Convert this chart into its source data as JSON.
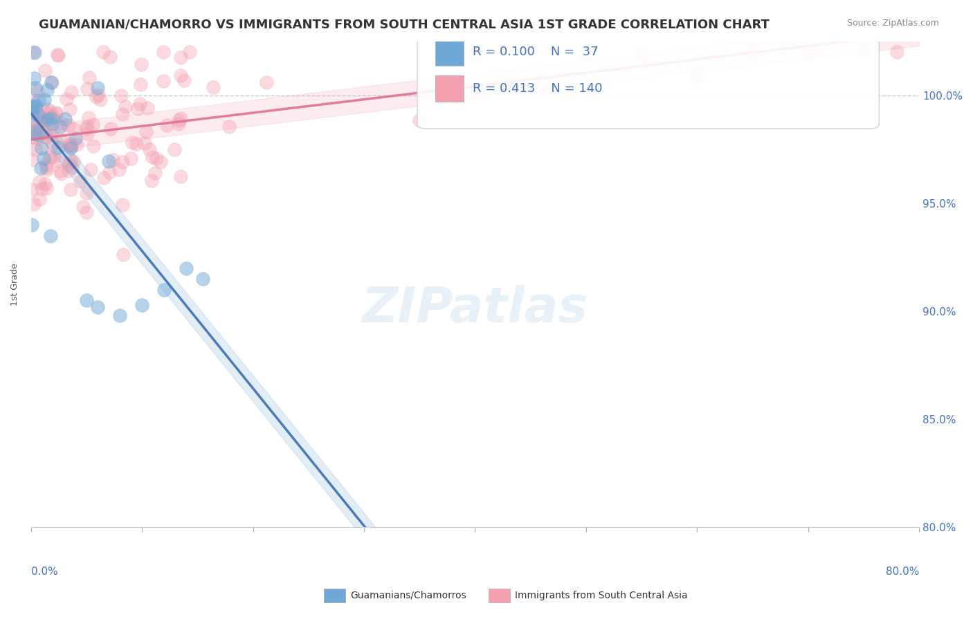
{
  "title": "GUAMANIAN/CHAMORRO VS IMMIGRANTS FROM SOUTH CENTRAL ASIA 1ST GRADE CORRELATION CHART",
  "source_text": "Source: ZipAtlas.com",
  "ylabel_label": "1st Grade",
  "xmin": 0.0,
  "xmax": 80.0,
  "ymin": 80.0,
  "ymax": 102.5,
  "legend_blue_R": "0.100",
  "legend_blue_N": "37",
  "legend_pink_R": "0.413",
  "legend_pink_N": "140",
  "legend_label_blue": "Guamanians/Chamorros",
  "legend_label_pink": "Immigrants from South Central Asia",
  "color_blue": "#6fa8d6",
  "color_pink": "#f4a0b0",
  "color_trendline_blue": "#3a6faf",
  "color_trendline_pink": "#e07090",
  "color_title": "#333333",
  "color_axis_labels": "#4472c4",
  "color_legend_text": "#4472c4",
  "background_color": "#ffffff",
  "watermark_text": "ZIPatlas",
  "dashed_line_y": 100.0,
  "yticks": [
    80,
    85,
    90,
    95,
    100
  ],
  "ytick_labels": [
    "80.0%",
    "85.0%",
    "90.0%",
    "95.0%",
    "100.0%"
  ],
  "xticks": [
    0,
    10,
    20,
    30,
    40,
    50,
    60,
    70,
    80
  ]
}
